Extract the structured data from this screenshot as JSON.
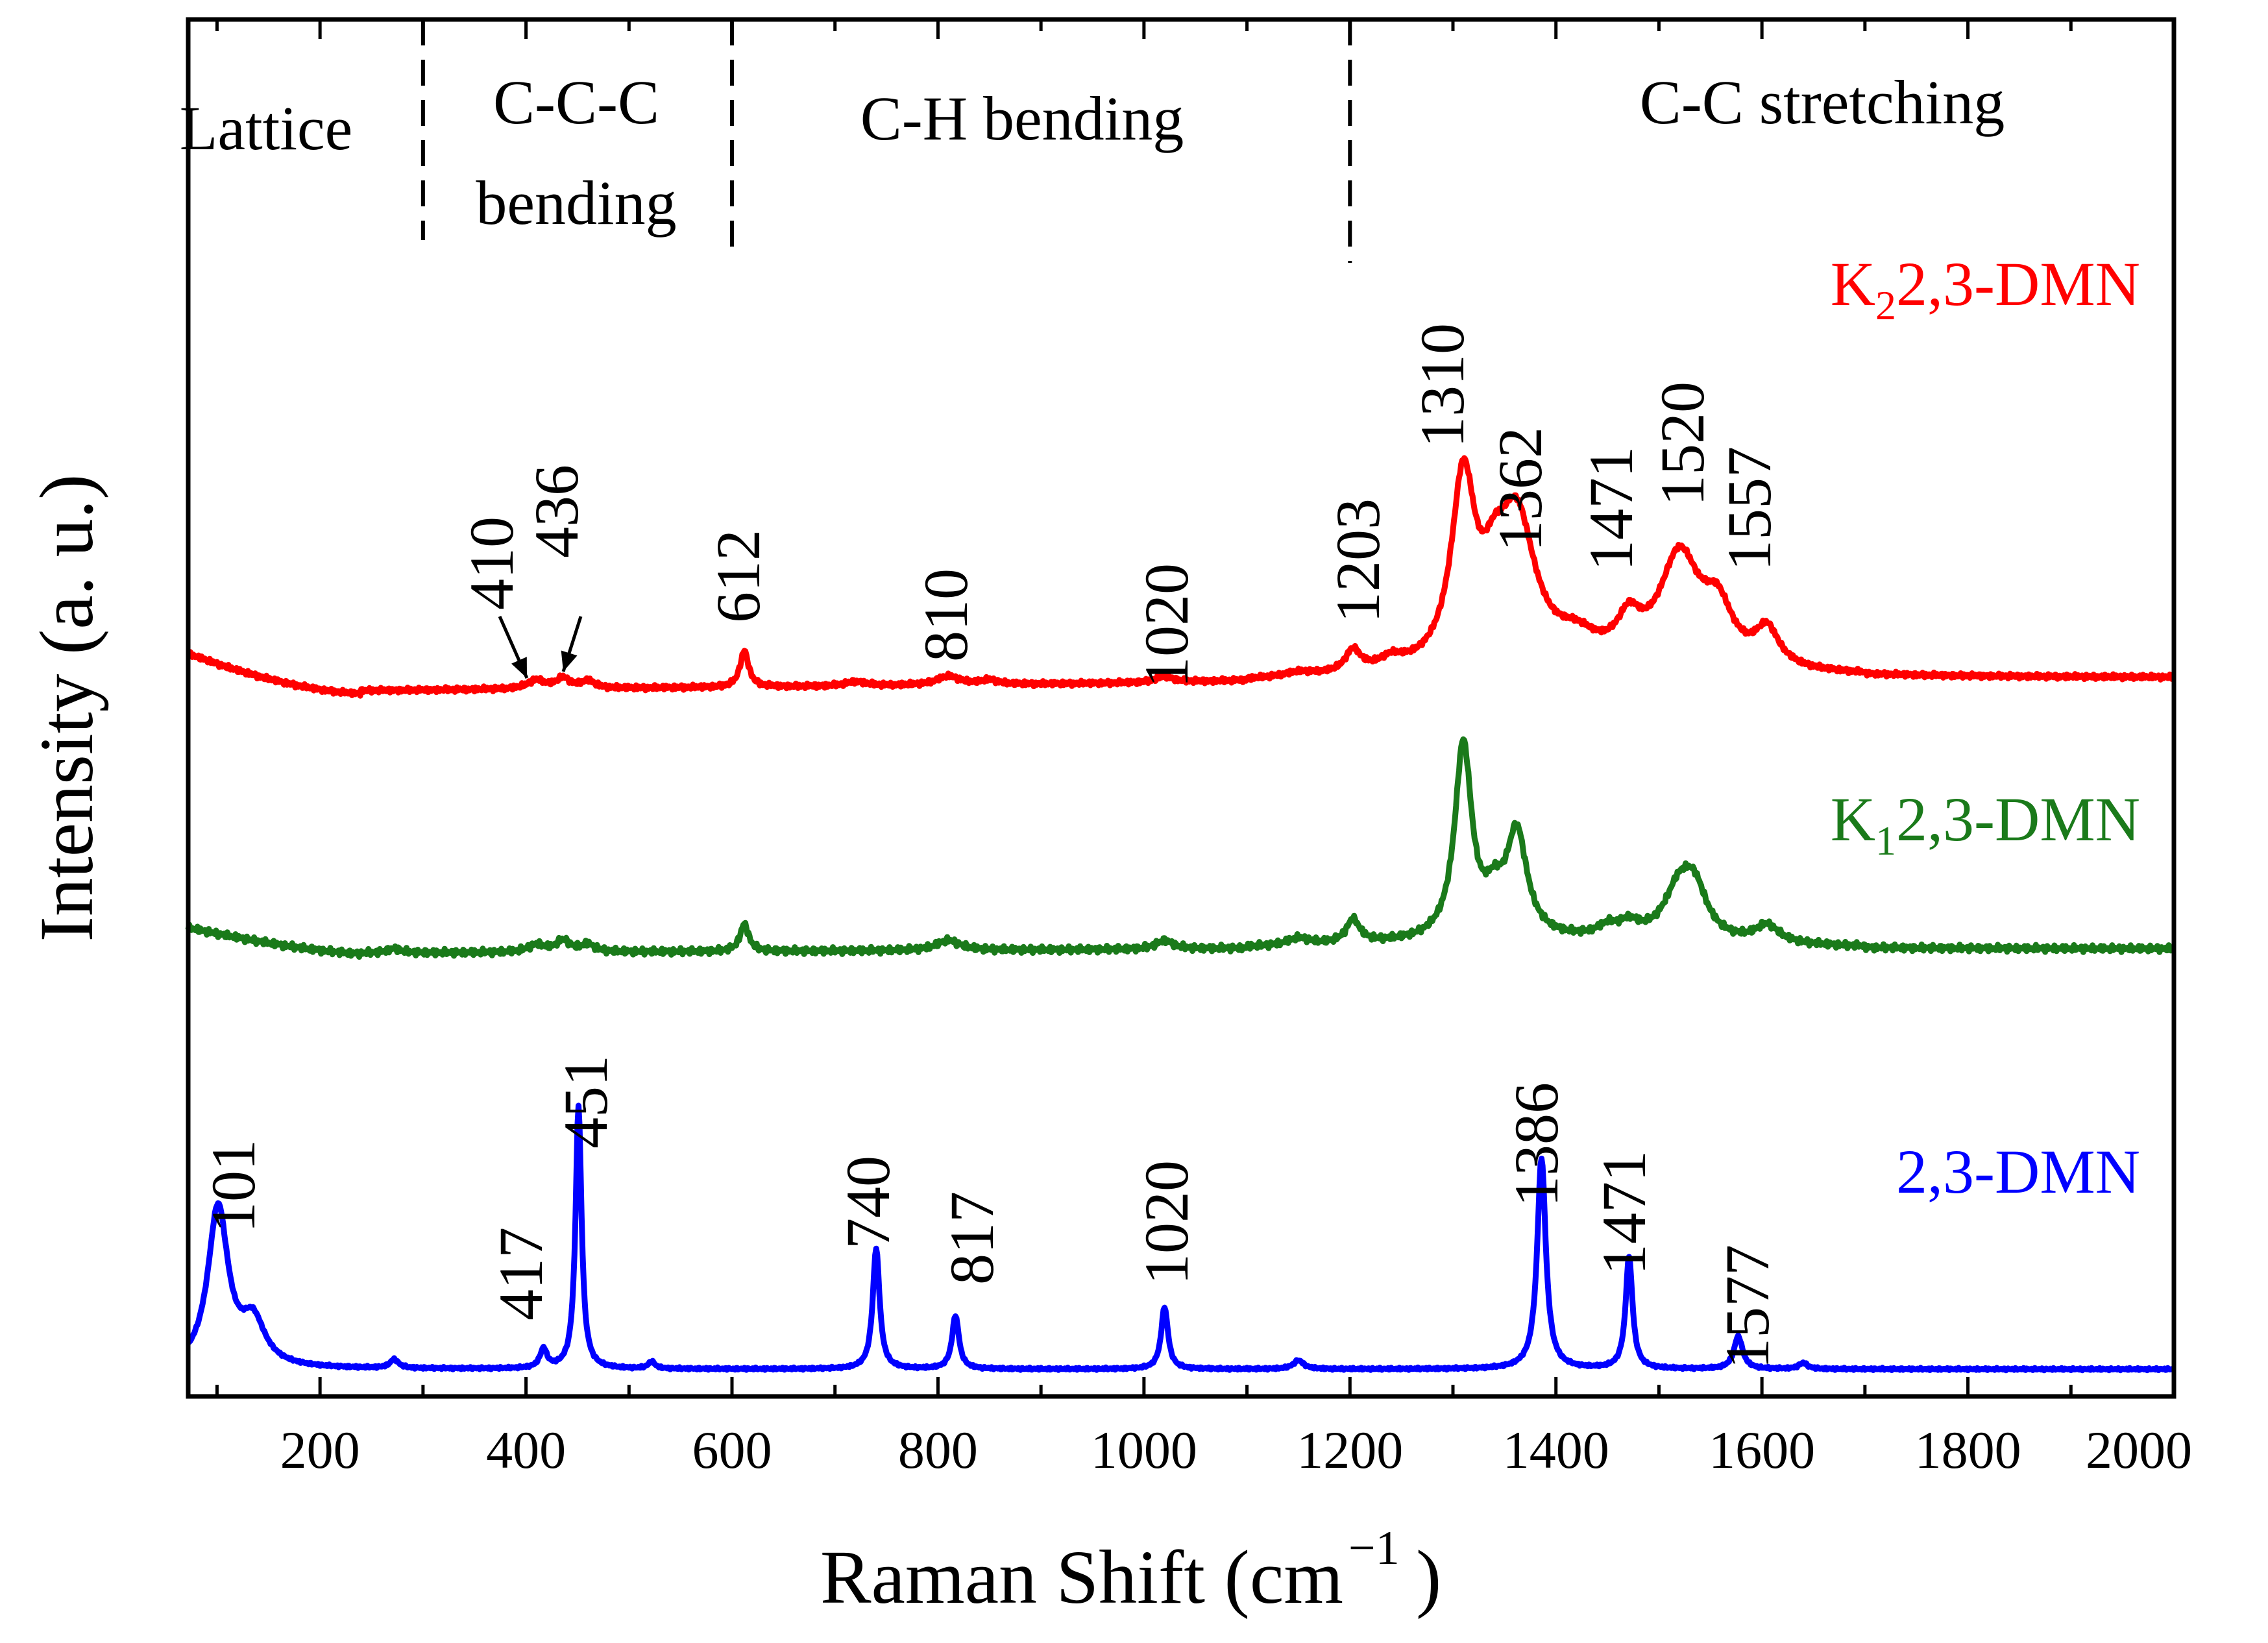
{
  "chart_data": {
    "type": "line",
    "title": "",
    "xlabel": "Raman Shift (cm",
    "xlabel_unit_sup": "−1",
    "xlabel_close": ")",
    "ylabel": "Intensity (a. u.)",
    "xlim": [
      72,
      2000
    ],
    "ylim": [
      0,
      100
    ],
    "x_ticks": [
      200,
      400,
      600,
      800,
      1000,
      1200,
      1400,
      1600,
      1800,
      2000
    ],
    "x_tick_labels": [
      "200",
      "400",
      "600",
      "800",
      "1000",
      "1200",
      "1400",
      "1600",
      "1800",
      "2000"
    ],
    "y_ticks_shown": false,
    "regions": [
      {
        "name": "lattice",
        "lines": [
          "Lattice"
        ],
        "center": 185
      },
      {
        "name": "ccc-bending",
        "lines": [
          "C-C-C",
          "bending"
        ],
        "center": 450
      },
      {
        "name": "ch-bending",
        "lines": [
          "C-H bending"
        ],
        "center": 900
      },
      {
        "name": "cc-stretching",
        "lines": [
          "C-C stretching"
        ],
        "center": 1600
      }
    ],
    "region_dividers": [
      300,
      600,
      1200
    ],
    "series": [
      {
        "name": "K22,3-DMN",
        "label_main": "K",
        "label_sub": "2",
        "label_rest": "2,3-DMN",
        "color": "#ff0000",
        "baseline": 21,
        "peaks_annotated": [
          "410",
          "436",
          "612",
          "810",
          "1020",
          "1203",
          "1310",
          "1362",
          "1471",
          "1520",
          "1557"
        ]
      },
      {
        "name": "K12,3-DMN",
        "label_main": "K",
        "label_sub": "1",
        "label_rest": "2,3-DMN",
        "color": "#1a7a1a",
        "baseline": 1,
        "peaks_annotated": []
      },
      {
        "name": "2,3-DMN",
        "label_main": "2,3-DMN",
        "label_sub": "",
        "label_rest": "",
        "color": "#0000ff",
        "baseline": 1,
        "peaks_annotated": [
          "101",
          "417",
          "451",
          "740",
          "817",
          "1020",
          "1386",
          "1471",
          "1577"
        ]
      }
    ],
    "annotations": {
      "red_peaks": [
        "410",
        "436",
        "612",
        "810",
        "1020",
        "1203",
        "1310",
        "1362",
        "1471",
        "1520",
        "1557"
      ],
      "blue_peaks": [
        "101",
        "417",
        "451",
        "740",
        "817",
        "1020",
        "1386",
        "1471",
        "1577"
      ],
      "arrows": [
        "410",
        "436"
      ]
    }
  }
}
